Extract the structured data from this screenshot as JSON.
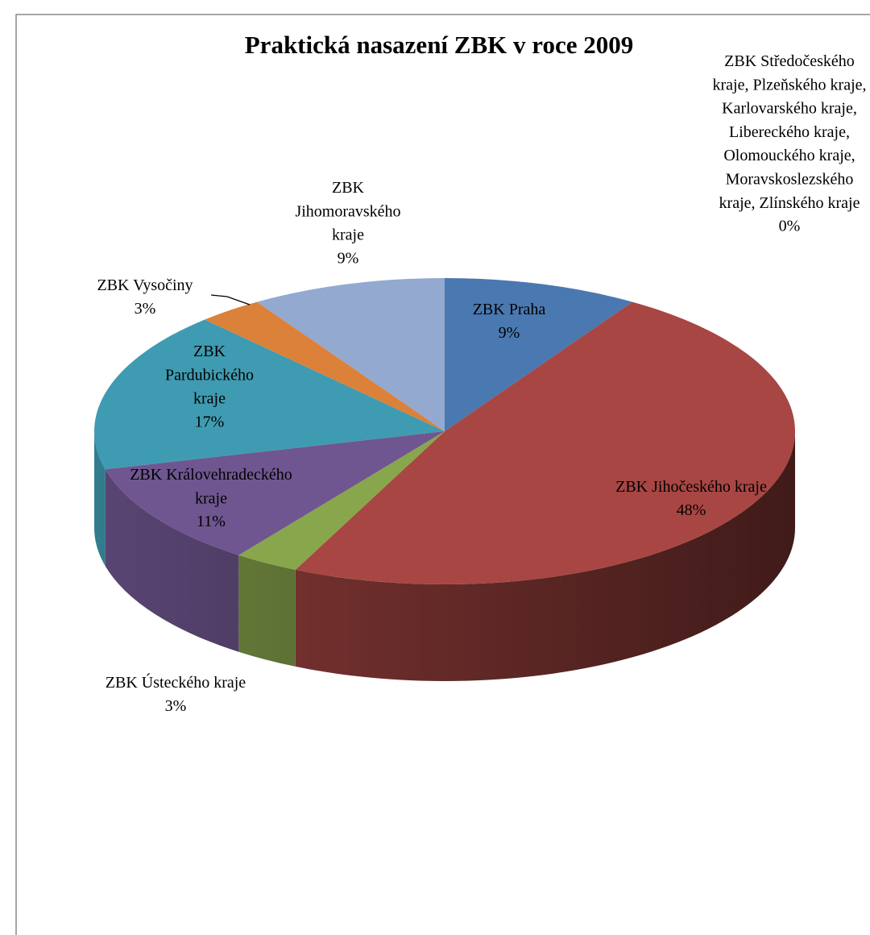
{
  "chart_data": {
    "type": "pie3d",
    "title": "Praktická nasazení ZBK v roce 2009",
    "categories": [
      "ZBK Praha",
      "ZBK Středočeského kraje, Plzeňského kraje, Karlovarského kraje, Libereckého kraje, Olomouckého kraje, Moravskoslezského kraje, Zlínského kraje",
      "ZBK Jihočeského kraje",
      "ZBK Ústeckého kraje",
      "ZBK Královehradeckého kraje",
      "ZBK Pardubického kraje",
      "ZBK Vysočiny",
      "ZBK Jihomoravského kraje"
    ],
    "values": [
      9,
      0,
      48,
      3,
      11,
      17,
      3,
      9
    ],
    "value_labels": [
      "9%",
      "0%",
      "48%",
      "3%",
      "11%",
      "17%",
      "3%",
      "9%"
    ],
    "colors": [
      "#4a78b0",
      "#4bacc6",
      "#a84643",
      "#88a64c",
      "#6f5690",
      "#3f9bb1",
      "#db8139",
      "#93a9cf"
    ]
  }
}
